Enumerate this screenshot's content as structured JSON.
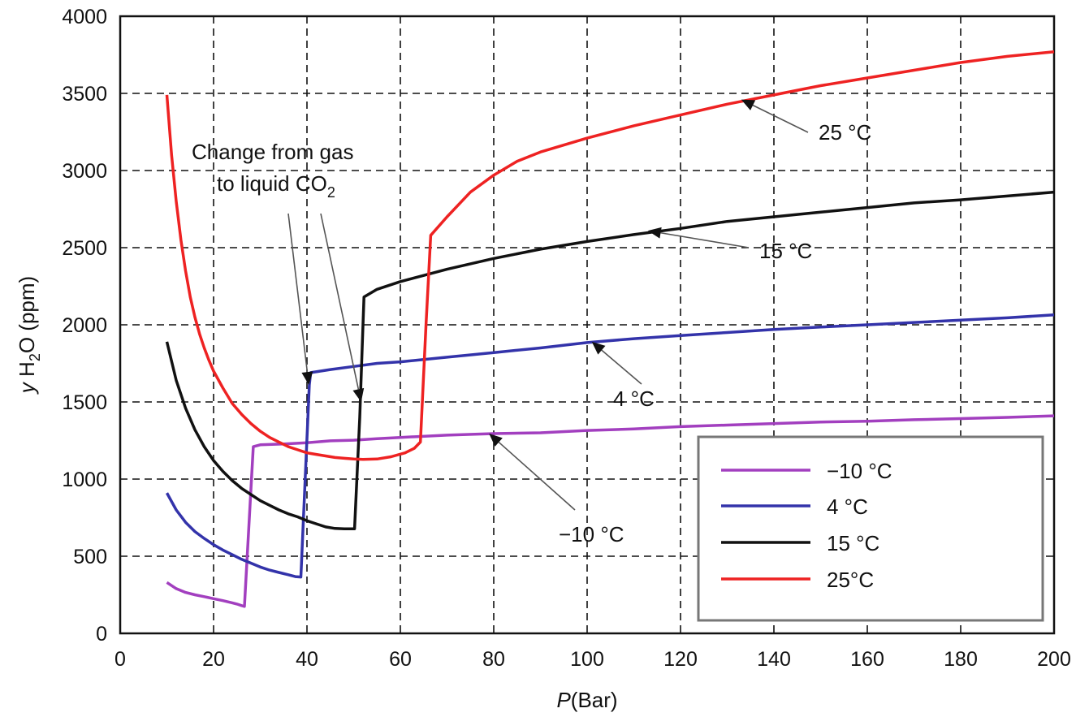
{
  "chart_data": {
    "type": "line",
    "xlabel_italic": "P",
    "xlabel_rest": "(Bar)",
    "ylabel_italic": "y",
    "ylabel_main": "H",
    "ylabel_sub": "2",
    "ylabel_rest": "O (ppm)",
    "xlim": [
      0,
      200
    ],
    "ylim": [
      0,
      4000
    ],
    "xticks": [
      "0",
      "20",
      "40",
      "60",
      "80",
      "100",
      "120",
      "140",
      "160",
      "180",
      "200"
    ],
    "yticks": [
      "0",
      "500",
      "1000",
      "1500",
      "2000",
      "2500",
      "3000",
      "3500",
      "4000"
    ],
    "grid": true,
    "legend_position": "bottom-right",
    "series": [
      {
        "name": "−10 °C",
        "color": "#a23fbf",
        "points": [
          [
            10,
            330
          ],
          [
            12,
            290
          ],
          [
            14,
            265
          ],
          [
            16,
            250
          ],
          [
            18,
            238
          ],
          [
            20,
            225
          ],
          [
            22,
            212
          ],
          [
            24,
            198
          ],
          [
            25,
            190
          ],
          [
            26,
            180
          ],
          [
            26.6,
            175
          ],
          [
            28.5,
            1210
          ],
          [
            30,
            1222
          ],
          [
            35,
            1228
          ],
          [
            40,
            1236
          ],
          [
            45,
            1248
          ],
          [
            50,
            1252
          ],
          [
            55,
            1262
          ],
          [
            60,
            1270
          ],
          [
            70,
            1285
          ],
          [
            80,
            1295
          ],
          [
            90,
            1300
          ],
          [
            100,
            1315
          ],
          [
            110,
            1325
          ],
          [
            120,
            1340
          ],
          [
            130,
            1350
          ],
          [
            140,
            1360
          ],
          [
            150,
            1370
          ],
          [
            160,
            1375
          ],
          [
            170,
            1385
          ],
          [
            180,
            1392
          ],
          [
            190,
            1400
          ],
          [
            200,
            1410
          ]
        ]
      },
      {
        "name": "4 °C",
        "color": "#3333aa",
        "points": [
          [
            10,
            910
          ],
          [
            12,
            800
          ],
          [
            14,
            720
          ],
          [
            16,
            660
          ],
          [
            18,
            615
          ],
          [
            20,
            575
          ],
          [
            22,
            540
          ],
          [
            24,
            510
          ],
          [
            26,
            480
          ],
          [
            28,
            455
          ],
          [
            30,
            430
          ],
          [
            32,
            410
          ],
          [
            34,
            395
          ],
          [
            36,
            380
          ],
          [
            37.5,
            368
          ],
          [
            38.7,
            365
          ],
          [
            40.5,
            1610
          ],
          [
            40.8,
            1690
          ],
          [
            45,
            1710
          ],
          [
            50,
            1730
          ],
          [
            55,
            1750
          ],
          [
            60,
            1760
          ],
          [
            70,
            1790
          ],
          [
            80,
            1820
          ],
          [
            90,
            1850
          ],
          [
            100,
            1885
          ],
          [
            110,
            1910
          ],
          [
            120,
            1930
          ],
          [
            130,
            1950
          ],
          [
            140,
            1970
          ],
          [
            150,
            1985
          ],
          [
            160,
            2000
          ],
          [
            170,
            2015
          ],
          [
            180,
            2030
          ],
          [
            190,
            2045
          ],
          [
            200,
            2065
          ]
        ]
      },
      {
        "name": "15 °C",
        "color": "#111111",
        "points": [
          [
            10,
            1890
          ],
          [
            12,
            1640
          ],
          [
            14,
            1460
          ],
          [
            16,
            1320
          ],
          [
            18,
            1210
          ],
          [
            20,
            1120
          ],
          [
            22,
            1050
          ],
          [
            24,
            990
          ],
          [
            26,
            940
          ],
          [
            28,
            900
          ],
          [
            30,
            860
          ],
          [
            32,
            830
          ],
          [
            34,
            800
          ],
          [
            36,
            775
          ],
          [
            38,
            755
          ],
          [
            40,
            730
          ],
          [
            42,
            710
          ],
          [
            44,
            690
          ],
          [
            46,
            680
          ],
          [
            48,
            678
          ],
          [
            50.2,
            678
          ],
          [
            51.3,
            1400
          ],
          [
            52.2,
            2180
          ],
          [
            55,
            2230
          ],
          [
            60,
            2280
          ],
          [
            65,
            2320
          ],
          [
            70,
            2360
          ],
          [
            80,
            2430
          ],
          [
            90,
            2490
          ],
          [
            100,
            2540
          ],
          [
            110,
            2585
          ],
          [
            120,
            2625
          ],
          [
            130,
            2670
          ],
          [
            140,
            2700
          ],
          [
            150,
            2730
          ],
          [
            160,
            2760
          ],
          [
            170,
            2790
          ],
          [
            180,
            2810
          ],
          [
            190,
            2835
          ],
          [
            200,
            2860
          ]
        ]
      },
      {
        "name": "25°C",
        "color": "#ee2222",
        "points": [
          [
            10,
            3490
          ],
          [
            11,
            3100
          ],
          [
            12,
            2800
          ],
          [
            13,
            2550
          ],
          [
            14,
            2350
          ],
          [
            15,
            2180
          ],
          [
            16,
            2050
          ],
          [
            17,
            1940
          ],
          [
            18,
            1850
          ],
          [
            19,
            1770
          ],
          [
            20,
            1700
          ],
          [
            22,
            1590
          ],
          [
            24,
            1490
          ],
          [
            26,
            1420
          ],
          [
            28,
            1360
          ],
          [
            30,
            1310
          ],
          [
            32,
            1270
          ],
          [
            34,
            1240
          ],
          [
            36,
            1210
          ],
          [
            38,
            1190
          ],
          [
            40,
            1170
          ],
          [
            42,
            1160
          ],
          [
            44,
            1150
          ],
          [
            46,
            1140
          ],
          [
            48,
            1135
          ],
          [
            50,
            1130
          ],
          [
            52,
            1128
          ],
          [
            55,
            1130
          ],
          [
            58,
            1145
          ],
          [
            61,
            1170
          ],
          [
            63,
            1200
          ],
          [
            64.3,
            1240
          ],
          [
            65.5,
            2000
          ],
          [
            66.5,
            2580
          ],
          [
            70,
            2700
          ],
          [
            75,
            2860
          ],
          [
            80,
            2970
          ],
          [
            85,
            3060
          ],
          [
            90,
            3120
          ],
          [
            100,
            3210
          ],
          [
            110,
            3290
          ],
          [
            120,
            3360
          ],
          [
            130,
            3430
          ],
          [
            140,
            3490
          ],
          [
            150,
            3550
          ],
          [
            160,
            3600
          ],
          [
            170,
            3650
          ],
          [
            180,
            3700
          ],
          [
            190,
            3740
          ],
          [
            200,
            3770
          ]
        ]
      }
    ],
    "annotations": [
      {
        "id": "label-25",
        "text": "25 °C"
      },
      {
        "id": "label-15",
        "text": "15 °C"
      },
      {
        "id": "label-4",
        "text": "4 °C"
      },
      {
        "id": "label-m10",
        "text": "−10 °C"
      },
      {
        "id": "change-line1",
        "text": "Change from gas"
      },
      {
        "id": "change-line2-main",
        "text": "to liquid CO"
      },
      {
        "id": "change-line2-sub",
        "text": "2"
      }
    ]
  }
}
